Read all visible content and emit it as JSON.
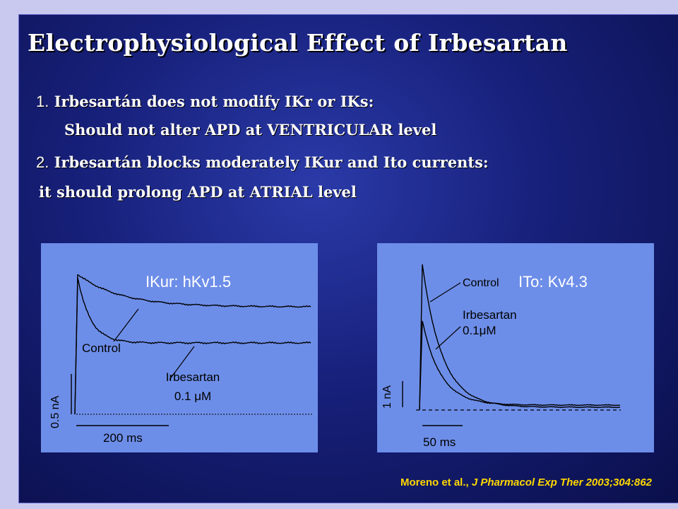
{
  "title": "Electrophysiological Effect of Irbesartan",
  "points": [
    {
      "number": "1.",
      "line1": "Irbesartán does not modify IKr or IKs:",
      "line2": "Should not alter APD at  VENTRICULAR  level"
    },
    {
      "number": "2.",
      "line1": "Irbesartán blocks moderately IKur and Ito currents:",
      "line2": "it should prolong APD  at  ATRIAL level"
    }
  ],
  "panels": {
    "left": {
      "heading": "IKur: hKv1.5",
      "control_label": "Control",
      "drug_label_line1": "Irbesartan",
      "drug_label_line2": "0.1 μM",
      "y_scale": "0.5 nA",
      "x_scale": "200 ms"
    },
    "right": {
      "heading": "ITo: Kv4.3",
      "control_label": "Control",
      "drug_label_line1": "Irbesartan",
      "drug_label_line2": "0.1μM",
      "y_scale": "1 nA",
      "x_scale": "50 ms"
    }
  },
  "citation": {
    "authors": "Moreno et al.,",
    "journal": "J Pharmacol Exp Ther 2003;304:862"
  },
  "colors": {
    "background": "#17207a",
    "panel": "#6d8ee8",
    "citation": "#ffd800",
    "text": "#ffffff"
  }
}
